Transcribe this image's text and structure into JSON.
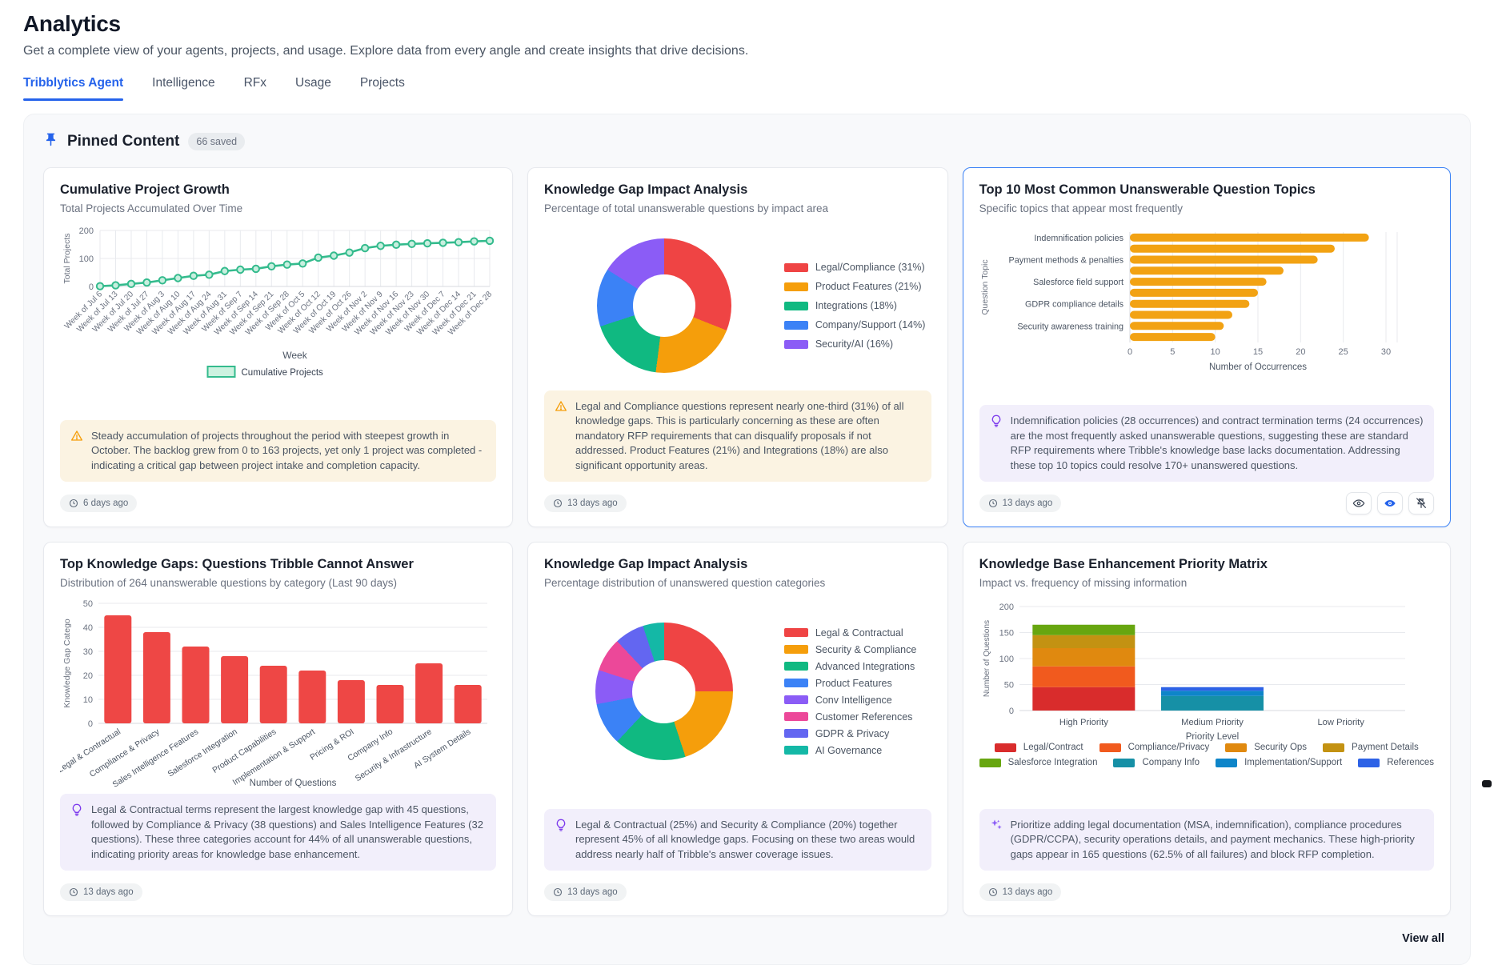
{
  "page": {
    "title": "Analytics",
    "subtitle": "Get a complete view of your agents, projects, and usage. Explore data from every angle and create insights that drive decisions."
  },
  "tabs": [
    {
      "label": "Tribblytics Agent",
      "active": true
    },
    {
      "label": "Intelligence",
      "active": false
    },
    {
      "label": "RFx",
      "active": false
    },
    {
      "label": "Usage",
      "active": false
    },
    {
      "label": "Projects",
      "active": false
    }
  ],
  "pinned": {
    "title": "Pinned Content",
    "badge": "66 saved",
    "view_all": "View all"
  },
  "cards": [
    {
      "title": "Cumulative Project Growth",
      "subtitle": "Total Projects Accumulated Over Time",
      "annotation_type": "warning",
      "annotation": "Steady accumulation of projects throughout the period with steepest growth in October. The backlog grew from 0 to 163 projects, yet only 1 project was completed - indicating a critical gap between project intake and completion capacity.",
      "timestamp": "6 days ago"
    },
    {
      "title": "Knowledge Gap Impact Analysis",
      "subtitle": "Percentage of total unanswerable questions by impact area",
      "annotation_type": "warning",
      "annotation": "Legal and Compliance questions represent nearly one-third (31%) of all knowledge gaps. This is particularly concerning as these are often mandatory RFP requirements that can disqualify proposals if not addressed. Product Features (21%) and Integrations (18%) are also significant opportunity areas.",
      "timestamp": "13 days ago"
    },
    {
      "title": "Top 10 Most Common Unanswerable Question Topics",
      "subtitle": "Specific topics that appear most frequently",
      "annotation_type": "insight",
      "annotation": "Indemnification policies (28 occurrences) and contract termination terms (24 occurrences) are the most frequently asked unanswerable questions, suggesting these are standard RFP requirements where Tribble's knowledge base lacks documentation. Addressing these top 10 topics could resolve 170+ unanswered questions.",
      "timestamp": "13 days ago"
    },
    {
      "title": "Top Knowledge Gaps: Questions Tribble Cannot Answer",
      "subtitle": "Distribution of 264 unanswerable questions by category (Last 90 days)",
      "annotation_type": "insight",
      "annotation": "Legal & Contractual terms represent the largest knowledge gap with 45 questions, followed by Compliance & Privacy (38 questions) and Sales Intelligence Features (32 questions). These three categories account for 44% of all unanswerable questions, indicating priority areas for knowledge base enhancement.",
      "timestamp": "13 days ago"
    },
    {
      "title": "Knowledge Gap Impact Analysis",
      "subtitle": "Percentage distribution of unanswered question categories",
      "annotation_type": "insight",
      "annotation": "Legal & Contractual (25%) and Security & Compliance (20%) together represent 45% of all knowledge gaps. Focusing on these two areas would address nearly half of Tribble's answer coverage issues.",
      "timestamp": "13 days ago"
    },
    {
      "title": "Knowledge Base Enhancement Priority Matrix",
      "subtitle": "Impact vs. frequency of missing information",
      "annotation_type": "ai",
      "annotation": "Prioritize adding legal documentation (MSA, indemnification), compliance procedures (GDPR/CCPA), security operations details, and payment mechanics. These high-priority gaps appear in 165 questions (62.5% of all failures) and block RFP completion.",
      "timestamp": "13 days ago"
    }
  ],
  "chart_data": [
    {
      "type": "line",
      "title": "Cumulative Project Growth",
      "xlabel": "Week",
      "ylabel": "Total Projects",
      "yticks": [
        0,
        100,
        200
      ],
      "ylim": [
        0,
        200
      ],
      "legend": "Cumulative Projects",
      "line_color": "#34bb8d",
      "point_fill": "#c8efdf",
      "x": [
        "Week of Jul 6",
        "Week of Jul 13",
        "Week of Jul 20",
        "Week of Jul 27",
        "Week of Aug 3",
        "Week of Aug 10",
        "Week of Aug 17",
        "Week of Aug 24",
        "Week of Aug 31",
        "Week of Sep 7",
        "Week of Sep 14",
        "Week of Sep 21",
        "Week of Sep 28",
        "Week of Oct 5",
        "Week of Oct 12",
        "Week of Oct 19",
        "Week of Oct 26",
        "Week of Nov 2",
        "Week of Nov 9",
        "Week of Nov 16",
        "Week of Nov 23",
        "Week of Nov 30",
        "Week of Dec 7",
        "Week of Dec 14",
        "Week of Dec 21",
        "Week of Dec 28"
      ],
      "values": [
        1,
        4,
        9,
        14,
        22,
        30,
        38,
        42,
        55,
        60,
        63,
        72,
        78,
        82,
        103,
        110,
        121,
        137,
        145,
        149,
        152,
        154,
        156,
        158,
        161,
        163
      ]
    },
    {
      "type": "pie",
      "title": "Knowledge Gap Impact Analysis",
      "labels": [
        "Legal/Compliance (31%)",
        "Product Features (21%)",
        "Integrations (18%)",
        "Company/Support (14%)",
        "Security/AI (16%)"
      ],
      "values": [
        31,
        21,
        18,
        14,
        16
      ],
      "colors": [
        "#ef4444",
        "#f59e0b",
        "#10b981",
        "#3b82f6",
        "#8b5cf6"
      ],
      "donut_size": 168,
      "legend_gap": 10
    },
    {
      "type": "bar-horizontal",
      "title": "Top 10 Most Common Unanswerable Question Topics",
      "xlabel": "Number of Occurrences",
      "ylabel": "Question Topic",
      "xticks": [
        0,
        5,
        10,
        15,
        20,
        25,
        30
      ],
      "xlim": [
        0,
        30
      ],
      "bar_color": "#f2a213",
      "categories": [
        "Indemnification policies",
        "",
        "Payment methods & penalties",
        "",
        "Salesforce field support",
        "",
        "GDPR compliance details",
        "",
        "Security awareness training",
        ""
      ],
      "values": [
        28,
        24,
        22,
        18,
        16,
        15,
        14,
        12,
        11,
        10
      ]
    },
    {
      "type": "bar",
      "title": "Top Knowledge Gaps: Questions Tribble Cannot Answer",
      "xlabel": "Number of Questions",
      "ylabel": "Knowledge Gap Catego",
      "yticks": [
        0,
        10,
        20,
        30,
        40,
        50
      ],
      "ylim": [
        0,
        50
      ],
      "bar_color": "#ee4745",
      "categories": [
        "Legal & Contractual",
        "Compliance & Privacy",
        "Sales Intelligence Features",
        "Salesforce Integration",
        "Product Capabilities",
        "Implementation & Support",
        "Pricing & ROI",
        "Company Info",
        "Security & Infrastructure",
        "AI System Details"
      ],
      "values": [
        45,
        38,
        32,
        28,
        24,
        22,
        18,
        16,
        25,
        16
      ]
    },
    {
      "type": "pie",
      "title": "Knowledge Gap Impact Analysis",
      "labels": [
        "Legal & Contractual",
        "Security & Compliance",
        "Advanced Integrations",
        "Product Features",
        "Conv Intelligence",
        "Customer References",
        "GDPR & Privacy",
        "AI Governance"
      ],
      "values": [
        25,
        20,
        17,
        10,
        8,
        8,
        7,
        5
      ],
      "colors": [
        "#ef4444",
        "#f59e0b",
        "#10b981",
        "#3b82f6",
        "#8b5cf6",
        "#ec4899",
        "#6366f1",
        "#14b8a6"
      ],
      "donut_size": 172,
      "legend_gap": 7
    },
    {
      "type": "stacked-bar",
      "title": "Knowledge Base Enhancement Priority Matrix",
      "xlabel": "Priority Level",
      "ylabel": "Number of Questions",
      "yticks": [
        0,
        50,
        100,
        150,
        200
      ],
      "ylim": [
        0,
        200
      ],
      "categories": [
        "High Priority",
        "Medium Priority",
        "Low Priority"
      ],
      "series": [
        {
          "name": "Legal/Contract",
          "color": "#d92c2c",
          "values": [
            45,
            0,
            0
          ]
        },
        {
          "name": "Compliance/Privacy",
          "color": "#f15a1e",
          "values": [
            40,
            0,
            0
          ]
        },
        {
          "name": "Security Ops",
          "color": "#e0890f",
          "values": [
            35,
            0,
            0
          ]
        },
        {
          "name": "Payment Details",
          "color": "#c39212",
          "values": [
            25,
            0,
            0
          ]
        },
        {
          "name": "Salesforce Integration",
          "color": "#67a610",
          "values": [
            20,
            0,
            0
          ]
        },
        {
          "name": "Company Info",
          "color": "#1690a6",
          "values": [
            0,
            28,
            0
          ]
        },
        {
          "name": "Implementation/Support",
          "color": "#0e85c9",
          "values": [
            0,
            10,
            0
          ]
        },
        {
          "name": "References",
          "color": "#2d62e6",
          "values": [
            0,
            7,
            0
          ]
        }
      ],
      "legend_rows": [
        4,
        4
      ]
    }
  ]
}
